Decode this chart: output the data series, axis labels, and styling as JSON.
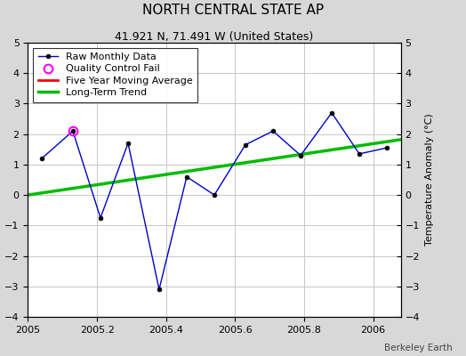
{
  "title": "NORTH CENTRAL STATE AP",
  "subtitle": "41.921 N, 71.491 W (United States)",
  "ylabel": "Temperature Anomaly (°C)",
  "watermark": "Berkeley Earth",
  "background_color": "#d8d8d8",
  "plot_bg_color": "#ffffff",
  "ylim": [
    -4,
    5
  ],
  "yticks": [
    -4,
    -3,
    -2,
    -1,
    0,
    1,
    2,
    3,
    4,
    5
  ],
  "xlim": [
    2005.0,
    2006.08
  ],
  "xticks": [
    2005.0,
    2005.2,
    2005.4,
    2005.6,
    2005.8,
    2006.0
  ],
  "raw_x": [
    2005.04,
    2005.13,
    2005.21,
    2005.29,
    2005.38,
    2005.46,
    2005.54,
    2005.63,
    2005.71,
    2005.79,
    2005.88,
    2005.96,
    2006.04
  ],
  "raw_y": [
    1.2,
    2.1,
    -0.75,
    1.7,
    -3.1,
    0.6,
    0.0,
    1.65,
    2.1,
    1.3,
    2.7,
    1.35,
    1.55
  ],
  "qc_fail_x": [
    2005.13
  ],
  "qc_fail_y": [
    2.1
  ],
  "trend_x": [
    2005.0,
    2006.08
  ],
  "trend_y": [
    0.0,
    1.82
  ],
  "raw_color": "#0000cc",
  "raw_marker_color": "#000000",
  "qc_color": "#ff00ff",
  "trend_color": "#00bb00",
  "moving_avg_color": "#ff0000",
  "grid_color": "#c8c8c8",
  "title_fontsize": 11,
  "subtitle_fontsize": 9,
  "label_fontsize": 8,
  "tick_fontsize": 8,
  "legend_fontsize": 8
}
